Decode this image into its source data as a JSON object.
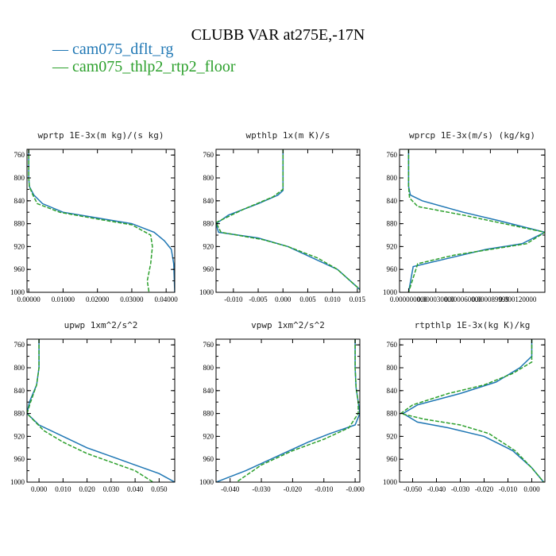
{
  "title": "CLUBB VAR at275E,-17N",
  "colors": {
    "s1": "#1f77b4",
    "s2": "#2ca02c",
    "axis": "#000000"
  },
  "legend": [
    {
      "prefix": "— ",
      "label": "cam075_dflt_rg"
    },
    {
      "prefix": "— ",
      "label": "cam075_thlp2_rtp2_floor"
    }
  ],
  "chart_data": [
    {
      "type": "line",
      "title": "wprtp  1E-3x(m kg)/(s kg)",
      "ylim": [
        1000,
        750
      ],
      "yticks": [
        "760",
        "800",
        "840",
        "880",
        "920",
        "960",
        "1000"
      ],
      "xlim": [
        -0.0005,
        0.0425
      ],
      "xticks": [
        {
          "v": 0,
          "t": "0.00000"
        },
        {
          "v": 0.01,
          "t": "0.01000"
        },
        {
          "v": 0.02,
          "t": "0.02000"
        },
        {
          "v": 0.03,
          "t": "0.03000"
        },
        {
          "v": 0.04,
          "t": "0.04000"
        }
      ],
      "series": [
        {
          "name": "cam075_dflt_rg",
          "dashed": false,
          "points": [
            [
              0,
              750
            ],
            [
              0,
              800
            ],
            [
              0.0002,
              815
            ],
            [
              0.0015,
              830
            ],
            [
              0.004,
              845
            ],
            [
              0.01,
              860
            ],
            [
              0.02,
              870
            ],
            [
              0.03,
              880
            ],
            [
              0.0365,
              895
            ],
            [
              0.0395,
              910
            ],
            [
              0.0415,
              925
            ],
            [
              0.0422,
              950
            ],
            [
              0.0425,
              1000
            ]
          ]
        },
        {
          "name": "cam075_thlp2_rtp2_floor",
          "dashed": true,
          "points": [
            [
              0,
              750
            ],
            [
              0,
              800
            ],
            [
              0.0002,
              815
            ],
            [
              0.0012,
              830
            ],
            [
              0.0025,
              845
            ],
            [
              0.009,
              860
            ],
            [
              0.02,
              872
            ],
            [
              0.03,
              882
            ],
            [
              0.0355,
              900
            ],
            [
              0.036,
              920
            ],
            [
              0.0355,
              950
            ],
            [
              0.0345,
              980
            ],
            [
              0.035,
              1000
            ]
          ]
        }
      ]
    },
    {
      "type": "line",
      "title": "wpthlp  1x(m K)/s",
      "ylim": [
        1000,
        750
      ],
      "yticks": [
        "760",
        "800",
        "840",
        "880",
        "920",
        "960",
        "1000"
      ],
      "xlim": [
        -0.0135,
        0.0155
      ],
      "xticks": [
        {
          "v": -0.01,
          "t": "-0.010"
        },
        {
          "v": -0.005,
          "t": "-0.005"
        },
        {
          "v": 0,
          "t": "0.000"
        },
        {
          "v": 0.005,
          "t": "0.005"
        },
        {
          "v": 0.01,
          "t": "0.010"
        },
        {
          "v": 0.015,
          "t": "0.015"
        }
      ],
      "series": [
        {
          "name": "cam075_dflt_rg",
          "dashed": false,
          "points": [
            [
              0,
              750
            ],
            [
              0,
              822
            ],
            [
              -0.001,
              830
            ],
            [
              -0.005,
              845
            ],
            [
              -0.011,
              865
            ],
            [
              -0.0135,
              880
            ],
            [
              -0.013,
              895
            ],
            [
              -0.005,
              905
            ],
            [
              0.001,
              920
            ],
            [
              0.006,
              940
            ],
            [
              0.011,
              960
            ],
            [
              0.0155,
              995
            ]
          ]
        },
        {
          "name": "cam075_thlp2_rtp2_floor",
          "dashed": true,
          "points": [
            [
              0,
              750
            ],
            [
              0,
              820
            ],
            [
              -0.002,
              833
            ],
            [
              -0.008,
              855
            ],
            [
              -0.0135,
              878
            ],
            [
              -0.0125,
              895
            ],
            [
              -0.004,
              908
            ],
            [
              0.001,
              920
            ],
            [
              0.007,
              940
            ],
            [
              0.011,
              960
            ],
            [
              0.0155,
              995
            ]
          ]
        }
      ]
    },
    {
      "type": "line",
      "title": "wprcp  1E-3x(m/s) (kg/kg)",
      "ylim": [
        1000,
        750
      ],
      "yticks": [
        "760",
        "800",
        "840",
        "880",
        "920",
        "960",
        "1000"
      ],
      "xlim": [
        -1e-05,
        0.00015
      ],
      "xticks": [
        {
          "v": 0,
          "t": "0.000000000"
        },
        {
          "v": 3e-05,
          "t": "0.000030000"
        },
        {
          "v": 6e-05,
          "t": "0.000060000"
        },
        {
          "v": 9e-05,
          "t": "0.000089999"
        },
        {
          "v": 0.00012,
          "t": "0.000120000"
        }
      ],
      "series": [
        {
          "name": "cam075_dflt_rg",
          "dashed": false,
          "points": [
            [
              0,
              750
            ],
            [
              0,
              815
            ],
            [
              2e-06,
              830
            ],
            [
              1.5e-05,
              840
            ],
            [
              6e-05,
              860
            ],
            [
              0.0001,
              875
            ],
            [
              0.00015,
              895
            ],
            [
              0.000125,
              915
            ],
            [
              8.5e-05,
              925
            ],
            [
              4.5e-05,
              940
            ],
            [
              5e-06,
              955
            ],
            [
              0,
              1000
            ]
          ]
        },
        {
          "name": "cam075_thlp2_rtp2_floor",
          "dashed": true,
          "points": [
            [
              0,
              750
            ],
            [
              0,
              815
            ],
            [
              1e-06,
              835
            ],
            [
              1e-05,
              850
            ],
            [
              6e-05,
              865
            ],
            [
              0.000105,
              880
            ],
            [
              0.00015,
              895
            ],
            [
              0.00013,
              915
            ],
            [
              9e-05,
              925
            ],
            [
              5e-05,
              935
            ],
            [
              1e-05,
              950
            ],
            [
              0,
              1000
            ]
          ]
        }
      ]
    },
    {
      "type": "line",
      "title": "upwp  1xm^2/s^2",
      "ylim": [
        1000,
        750
      ],
      "yticks": [
        "760",
        "800",
        "840",
        "880",
        "920",
        "960",
        "1000"
      ],
      "xlim": [
        -0.005,
        0.0565
      ],
      "xticks": [
        {
          "v": 0,
          "t": "0.000"
        },
        {
          "v": 0.01,
          "t": "0.010"
        },
        {
          "v": 0.02,
          "t": "0.020"
        },
        {
          "v": 0.03,
          "t": "0.030"
        },
        {
          "v": 0.04,
          "t": "0.040"
        },
        {
          "v": 0.05,
          "t": "0.050"
        }
      ],
      "series": [
        {
          "name": "cam075_dflt_rg",
          "dashed": false,
          "points": [
            [
              0,
              750
            ],
            [
              0,
              800
            ],
            [
              -0.001,
              830
            ],
            [
              -0.004,
              860
            ],
            [
              -0.005,
              880
            ],
            [
              0,
              900
            ],
            [
              0.01,
              920
            ],
            [
              0.02,
              940
            ],
            [
              0.03,
              955
            ],
            [
              0.04,
              970
            ],
            [
              0.05,
              985
            ],
            [
              0.0565,
              1000
            ]
          ]
        },
        {
          "name": "cam075_thlp2_rtp2_floor",
          "dashed": true,
          "points": [
            [
              0,
              750
            ],
            [
              0,
              800
            ],
            [
              -0.001,
              830
            ],
            [
              -0.0035,
              860
            ],
            [
              -0.005,
              880
            ],
            [
              0.002,
              910
            ],
            [
              0.01,
              930
            ],
            [
              0.02,
              950
            ],
            [
              0.03,
              965
            ],
            [
              0.04,
              980
            ],
            [
              0.0475,
              1000
            ]
          ]
        }
      ]
    },
    {
      "type": "line",
      "title": "vpwp  1xm^2/s^2",
      "ylim": [
        1000,
        750
      ],
      "yticks": [
        "760",
        "800",
        "840",
        "880",
        "920",
        "960",
        "1000"
      ],
      "xlim": [
        -0.0445,
        0.0015
      ],
      "xticks": [
        {
          "v": -0.04,
          "t": "-0.040"
        },
        {
          "v": -0.03,
          "t": "-0.030"
        },
        {
          "v": -0.02,
          "t": "-0.020"
        },
        {
          "v": -0.01,
          "t": "-0.010"
        },
        {
          "v": 0,
          "t": "-0.000"
        }
      ],
      "series": [
        {
          "name": "cam075_dflt_rg",
          "dashed": false,
          "points": [
            [
              0,
              750
            ],
            [
              0,
              800
            ],
            [
              0.0003,
              835
            ],
            [
              0.001,
              860
            ],
            [
              0.0015,
              880
            ],
            [
              0,
              900
            ],
            [
              -0.008,
              915
            ],
            [
              -0.015,
              930
            ],
            [
              -0.025,
              955
            ],
            [
              -0.035,
              980
            ],
            [
              -0.0445,
              1000
            ]
          ]
        },
        {
          "name": "cam075_thlp2_rtp2_floor",
          "dashed": true,
          "points": [
            [
              0,
              750
            ],
            [
              0,
              800
            ],
            [
              0.0003,
              835
            ],
            [
              0.001,
              860
            ],
            [
              0.001,
              880
            ],
            [
              -0.002,
              905
            ],
            [
              -0.01,
              925
            ],
            [
              -0.02,
              945
            ],
            [
              -0.03,
              970
            ],
            [
              -0.038,
              1000
            ]
          ]
        }
      ]
    },
    {
      "type": "line",
      "title": "rtpthlp  1E-3x(kg K)/kg",
      "ylim": [
        1000,
        750
      ],
      "yticks": [
        "760",
        "800",
        "840",
        "880",
        "920",
        "960",
        "1000"
      ],
      "xlim": [
        -0.0555,
        0.0055
      ],
      "xticks": [
        {
          "v": -0.05,
          "t": "-0.050"
        },
        {
          "v": -0.04,
          "t": "-0.040"
        },
        {
          "v": -0.03,
          "t": "-0.030"
        },
        {
          "v": -0.02,
          "t": "-0.020"
        },
        {
          "v": -0.01,
          "t": "-0.010"
        },
        {
          "v": 0,
          "t": "0.000"
        }
      ],
      "series": [
        {
          "name": "cam075_dflt_rg",
          "dashed": false,
          "points": [
            [
              0,
              750
            ],
            [
              0,
              780
            ],
            [
              -0.005,
              800
            ],
            [
              -0.015,
              825
            ],
            [
              -0.03,
              845
            ],
            [
              -0.048,
              865
            ],
            [
              -0.054,
              880
            ],
            [
              -0.048,
              895
            ],
            [
              -0.035,
              905
            ],
            [
              -0.02,
              920
            ],
            [
              -0.008,
              945
            ],
            [
              0,
              975
            ],
            [
              0.005,
              1000
            ]
          ]
        },
        {
          "name": "cam075_thlp2_rtp2_floor",
          "dashed": true,
          "points": [
            [
              0,
              750
            ],
            [
              0,
              790
            ],
            [
              -0.008,
              810
            ],
            [
              -0.02,
              830
            ],
            [
              -0.035,
              845
            ],
            [
              -0.05,
              865
            ],
            [
              -0.055,
              880
            ],
            [
              -0.045,
              890
            ],
            [
              -0.03,
              900
            ],
            [
              -0.018,
              915
            ],
            [
              -0.007,
              945
            ],
            [
              0,
              975
            ],
            [
              0.005,
              1000
            ]
          ]
        }
      ]
    }
  ]
}
